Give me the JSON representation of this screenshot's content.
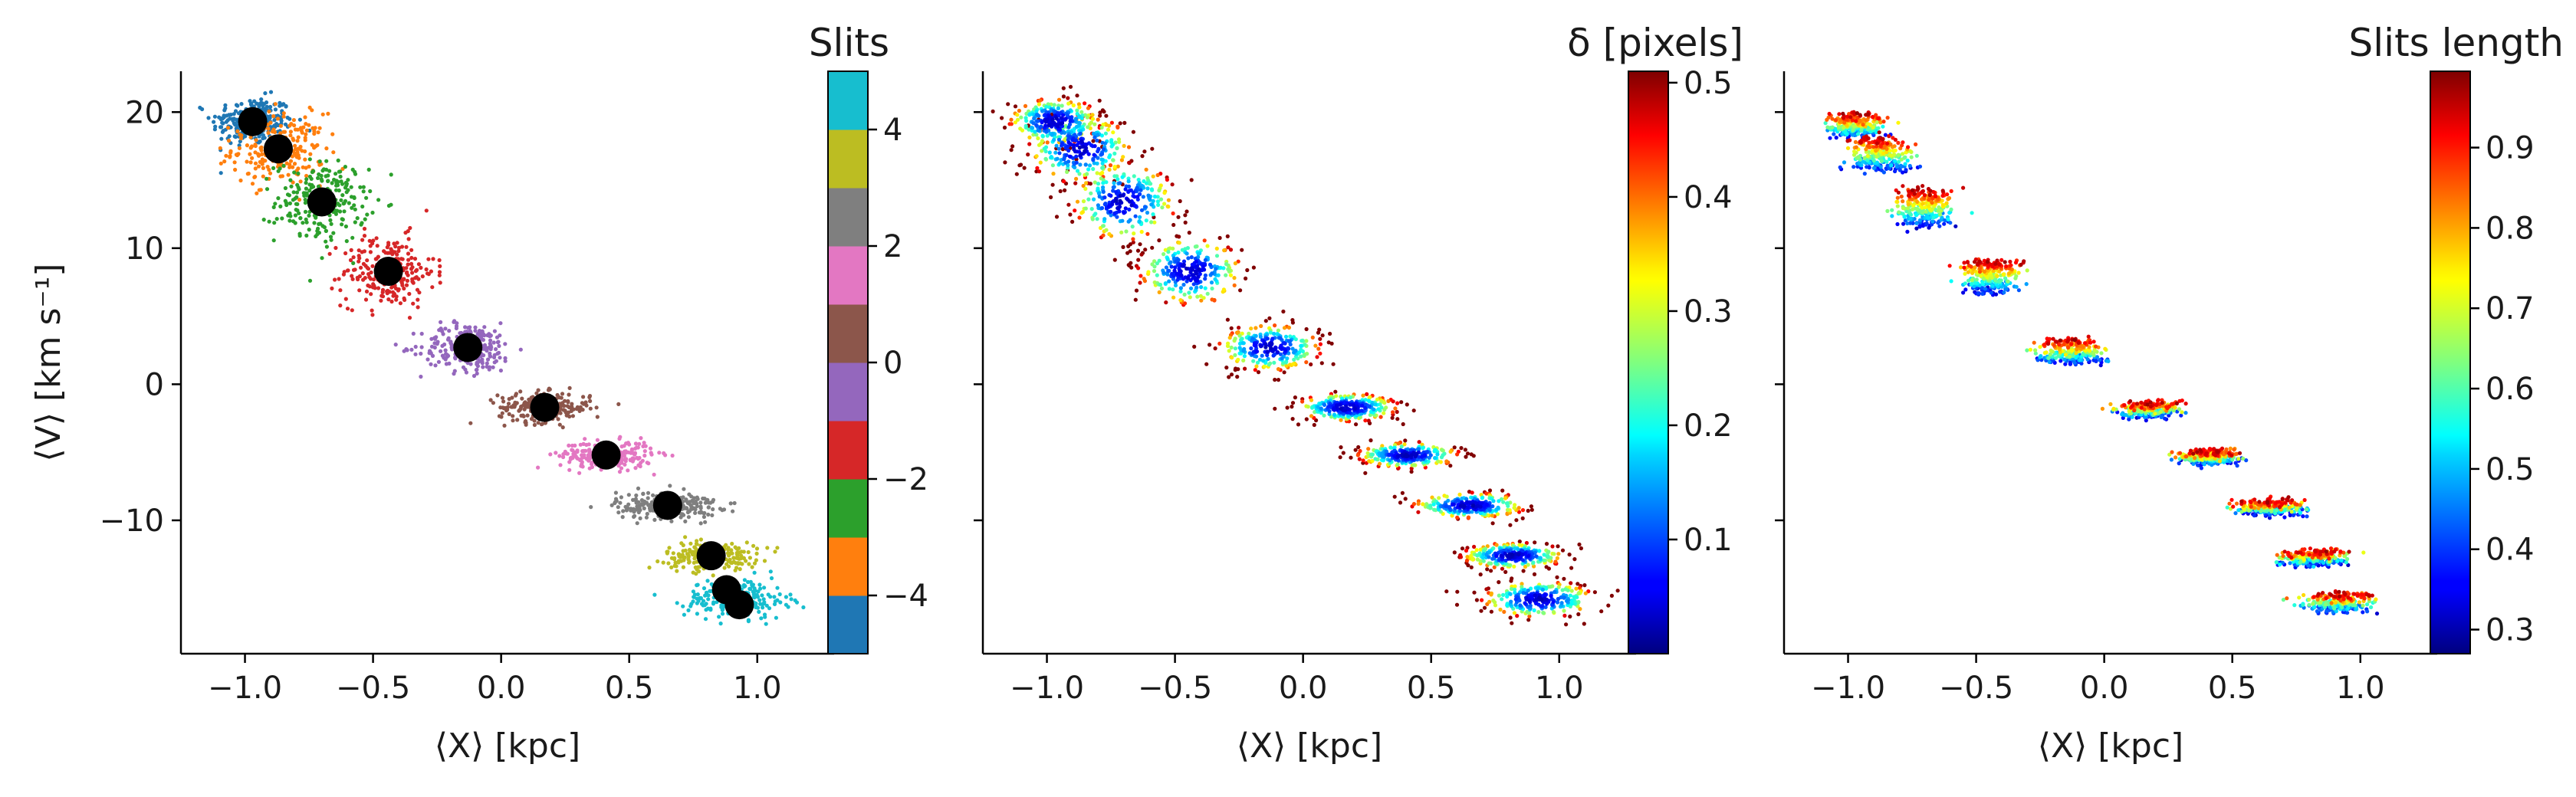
{
  "chart_data": [
    {
      "type": "scatter",
      "panel": "slits",
      "xlabel": "⟨X⟩ [kpc]",
      "ylabel": "⟨V⟩ [km s⁻¹]",
      "xlim": [
        -1.25,
        1.3
      ],
      "ylim": [
        -19.8,
        23
      ],
      "xticks": [
        -1.0,
        -0.5,
        0.0,
        0.5,
        1.0
      ],
      "xtick_labels": [
        "−1.0",
        "−0.5",
        "0.0",
        "0.5",
        "1.0"
      ],
      "yticks": [
        -10,
        0,
        10,
        20
      ],
      "ytick_labels": [
        "−10",
        "0",
        "10",
        "20"
      ],
      "colorbar": {
        "title": "Slits",
        "type": "discrete",
        "range": [
          -5,
          5
        ],
        "ticks": [
          -4,
          -2,
          0,
          2,
          4
        ],
        "tick_labels": [
          "−4",
          "−2",
          "0",
          "2",
          "4"
        ],
        "colors": [
          "#1f77b4",
          "#ff7f0e",
          "#2ca02c",
          "#d62728",
          "#9467bd",
          "#8c564b",
          "#e377c2",
          "#7f7f7f",
          "#bcbd22",
          "#17becf"
        ]
      },
      "clusters": [
        {
          "slit": -5,
          "color": "#1f77b4",
          "x": -0.97,
          "y": 19.3,
          "sx": 0.08,
          "sy": 0.9
        },
        {
          "slit": -4,
          "color": "#ff7f0e",
          "x": -0.87,
          "y": 17.3,
          "sx": 0.09,
          "sy": 1.3
        },
        {
          "slit": -3,
          "color": "#2ca02c",
          "x": -0.7,
          "y": 13.4,
          "sx": 0.09,
          "sy": 1.5
        },
        {
          "slit": -2,
          "color": "#d62728",
          "x": -0.44,
          "y": 8.3,
          "sx": 0.09,
          "sy": 1.3
        },
        {
          "slit": -1,
          "color": "#9467bd",
          "x": -0.13,
          "y": 2.7,
          "sx": 0.09,
          "sy": 0.9
        },
        {
          "slit": 0,
          "color": "#8c564b",
          "x": 0.17,
          "y": -1.7,
          "sx": 0.09,
          "sy": 0.55
        },
        {
          "slit": 1,
          "color": "#e377c2",
          "x": 0.41,
          "y": -5.2,
          "sx": 0.09,
          "sy": 0.5
        },
        {
          "slit": 2,
          "color": "#7f7f7f",
          "x": 0.65,
          "y": -8.9,
          "sx": 0.1,
          "sy": 0.5
        },
        {
          "slit": 3,
          "color": "#bcbd22",
          "x": 0.82,
          "y": -12.6,
          "sx": 0.09,
          "sy": 0.5
        },
        {
          "slit": 4,
          "color": "#17becf",
          "x": 0.92,
          "y": -15.8,
          "sx": 0.1,
          "sy": 0.7
        }
      ],
      "centers": [
        {
          "x": -0.97,
          "y": 19.3
        },
        {
          "x": -0.87,
          "y": 17.3
        },
        {
          "x": -0.7,
          "y": 13.4
        },
        {
          "x": -0.44,
          "y": 8.3
        },
        {
          "x": -0.13,
          "y": 2.7
        },
        {
          "x": 0.17,
          "y": -1.7
        },
        {
          "x": 0.41,
          "y": -5.2
        },
        {
          "x": 0.65,
          "y": -8.9
        },
        {
          "x": 0.82,
          "y": -12.6
        },
        {
          "x": 0.88,
          "y": -15.1
        },
        {
          "x": 0.93,
          "y": -16.2
        }
      ]
    },
    {
      "type": "scatter",
      "panel": "delta",
      "xlabel": "⟨X⟩ [kpc]",
      "xlim": [
        -1.25,
        1.3
      ],
      "ylim": [
        -19.8,
        23
      ],
      "xticks": [
        -1.0,
        -0.5,
        0.0,
        0.5,
        1.0
      ],
      "xtick_labels": [
        "−1.0",
        "−0.5",
        "0.0",
        "0.5",
        "1.0"
      ],
      "colorbar": {
        "title": "δ [pixels]",
        "colormap": "jet",
        "range": [
          0.0,
          0.51
        ],
        "ticks": [
          0.1,
          0.2,
          0.3,
          0.4,
          0.5
        ],
        "tick_labels": [
          "0.1",
          "0.2",
          "0.3",
          "0.4",
          "0.5"
        ]
      }
    },
    {
      "type": "scatter",
      "panel": "slits_length",
      "xlabel": "⟨X⟩ [kpc]",
      "xlim": [
        -1.25,
        1.3
      ],
      "ylim": [
        -19.8,
        23
      ],
      "xticks": [
        -1.0,
        -0.5,
        0.0,
        0.5,
        1.0
      ],
      "xtick_labels": [
        "−1.0",
        "−0.5",
        "0.0",
        "0.5",
        "1.0"
      ],
      "colorbar": {
        "title": "Slits length",
        "colormap": "jet",
        "range": [
          0.27,
          0.995
        ],
        "ticks": [
          0.3,
          0.4,
          0.5,
          0.6,
          0.7,
          0.8,
          0.9
        ],
        "tick_labels": [
          "0.3",
          "0.4",
          "0.5",
          "0.6",
          "0.7",
          "0.8",
          "0.9"
        ]
      }
    }
  ]
}
